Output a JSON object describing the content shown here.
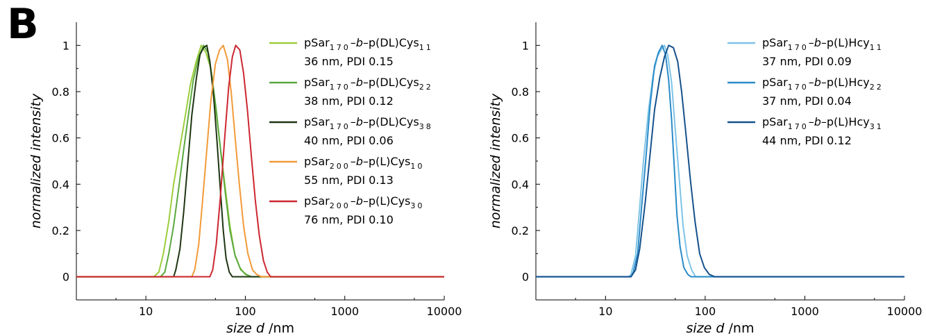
{
  "panel_letter": "B",
  "chart_data": [
    {
      "type": "line",
      "xscale": "log",
      "xlim": [
        2,
        10000
      ],
      "ylim": [
        -0.1,
        1.1
      ],
      "xticks": [
        10,
        100,
        1000,
        10000
      ],
      "xtick_labels": [
        "10",
        "100",
        "1000",
        "10000"
      ],
      "yticks": [
        0,
        0.2,
        0.4,
        0.6,
        0.8,
        1
      ],
      "ytick_labels": [
        "0",
        "0.2",
        "0.4",
        "0.6",
        "0.8",
        "1"
      ],
      "xlabel": {
        "italic": "size d",
        "rest": " /nm"
      },
      "ylabel": "normalized intensity",
      "grid": false,
      "legend_position": "top-right",
      "series": [
        {
          "name": "pSar170-b-p(DL)Cys11",
          "legend": {
            "base": "pSar",
            "sub1": "170",
            "mid1": "–",
            "italic": "b",
            "mid2": "–p(DL)Cys",
            "sub2": "11"
          },
          "stat": "36 nm, PDI 0.15",
          "color": "#9ccd3b",
          "points": [
            [
              2,
              0
            ],
            [
              12,
              0
            ],
            [
              13.5,
              0.02
            ],
            [
              15,
              0.1
            ],
            [
              17,
              0.24
            ],
            [
              19,
              0.4
            ],
            [
              22,
              0.56
            ],
            [
              25,
              0.7
            ],
            [
              28,
              0.83
            ],
            [
              32,
              0.93
            ],
            [
              36,
              1.0
            ],
            [
              40,
              0.97
            ],
            [
              45,
              0.9
            ],
            [
              50,
              0.74
            ],
            [
              56,
              0.56
            ],
            [
              63,
              0.38
            ],
            [
              70,
              0.22
            ],
            [
              78,
              0.1
            ],
            [
              88,
              0.04
            ],
            [
              100,
              0.01
            ],
            [
              115,
              0
            ],
            [
              10000,
              0
            ]
          ]
        },
        {
          "name": "pSar170-b-p(DL)Cys22",
          "legend": {
            "base": "pSar",
            "sub1": "170",
            "mid1": "–",
            "italic": "b",
            "mid2": "–p(DL)Cys",
            "sub2": "22"
          },
          "stat": "38 nm, PDI 0.12",
          "color": "#5aa83f",
          "points": [
            [
              2,
              0
            ],
            [
              14,
              0
            ],
            [
              15.5,
              0.02
            ],
            [
              17,
              0.1
            ],
            [
              19,
              0.22
            ],
            [
              21.5,
              0.39
            ],
            [
              24,
              0.55
            ],
            [
              27,
              0.71
            ],
            [
              30,
              0.85
            ],
            [
              34,
              0.95
            ],
            [
              38,
              1.0
            ],
            [
              42,
              0.97
            ],
            [
              46,
              0.87
            ],
            [
              51,
              0.72
            ],
            [
              57,
              0.53
            ],
            [
              63,
              0.36
            ],
            [
              70,
              0.2
            ],
            [
              79,
              0.09
            ],
            [
              90,
              0.03
            ],
            [
              102,
              0.01
            ],
            [
              115,
              0
            ],
            [
              10000,
              0
            ]
          ]
        },
        {
          "name": "pSar170-b-p(DL)Cys38",
          "legend": {
            "base": "pSar",
            "sub1": "170",
            "mid1": "–",
            "italic": "b",
            "mid2": "–p(DL)Cys",
            "sub2": "38"
          },
          "stat": "40 nm, PDI 0.06",
          "color": "#1e3412",
          "points": [
            [
              2,
              0
            ],
            [
              19,
              0
            ],
            [
              20,
              0.03
            ],
            [
              22,
              0.12
            ],
            [
              24,
              0.28
            ],
            [
              26.5,
              0.5
            ],
            [
              29,
              0.7
            ],
            [
              32,
              0.85
            ],
            [
              35,
              0.96
            ],
            [
              38,
              0.99
            ],
            [
              41,
              1.0
            ],
            [
              44,
              0.93
            ],
            [
              48,
              0.78
            ],
            [
              52,
              0.58
            ],
            [
              56,
              0.38
            ],
            [
              60,
              0.2
            ],
            [
              64,
              0.08
            ],
            [
              69,
              0.02
            ],
            [
              74,
              0
            ],
            [
              10000,
              0
            ]
          ]
        },
        {
          "name": "pSar200-b-p(L)Cys10",
          "legend": {
            "base": "pSar",
            "sub1": "200",
            "mid1": "–",
            "italic": "b",
            "mid2": "–p(L)Cys",
            "sub2": "10"
          },
          "stat": "55 nm, PDI 0.13",
          "color": "#f29a38",
          "points": [
            [
              2,
              0
            ],
            [
              29,
              0
            ],
            [
              31,
              0.03
            ],
            [
              34,
              0.14
            ],
            [
              37,
              0.32
            ],
            [
              41,
              0.55
            ],
            [
              45,
              0.76
            ],
            [
              50,
              0.92
            ],
            [
              55,
              0.98
            ],
            [
              60,
              1.0
            ],
            [
              66,
              0.94
            ],
            [
              72,
              0.8
            ],
            [
              79,
              0.6
            ],
            [
              87,
              0.4
            ],
            [
              96,
              0.22
            ],
            [
              106,
              0.1
            ],
            [
              118,
              0.03
            ],
            [
              130,
              0.01
            ],
            [
              145,
              0
            ],
            [
              10000,
              0
            ]
          ]
        },
        {
          "name": "pSar200-b-p(L)Cys30",
          "legend": {
            "base": "pSar",
            "sub1": "200",
            "mid1": "–",
            "italic": "b",
            "mid2": "–p(L)Cys",
            "sub2": "30"
          },
          "stat": "76 nm, PDI 0.10",
          "color": "#cc2630",
          "points": [
            [
              2,
              0
            ],
            [
              44,
              0
            ],
            [
              47,
              0.03
            ],
            [
              51,
              0.14
            ],
            [
              56,
              0.34
            ],
            [
              62,
              0.6
            ],
            [
              68,
              0.82
            ],
            [
              74,
              0.95
            ],
            [
              80,
              1.0
            ],
            [
              88,
              0.98
            ],
            [
              96,
              0.88
            ],
            [
              105,
              0.72
            ],
            [
              115,
              0.52
            ],
            [
              126,
              0.33
            ],
            [
              138,
              0.18
            ],
            [
              152,
              0.07
            ],
            [
              166,
              0.02
            ],
            [
              180,
              0
            ],
            [
              7500,
              0
            ],
            [
              10000,
              0
            ]
          ]
        }
      ]
    },
    {
      "type": "line",
      "xscale": "log",
      "xlim": [
        2,
        10000
      ],
      "ylim": [
        -0.1,
        1.1
      ],
      "xticks": [
        10,
        100,
        1000,
        10000
      ],
      "xtick_labels": [
        "10",
        "100",
        "1000",
        "10000"
      ],
      "yticks": [
        0,
        0.2,
        0.4,
        0.6,
        0.8,
        1
      ],
      "ytick_labels": [
        "0",
        "0.2",
        "0.4",
        "0.6",
        "0.8",
        "1"
      ],
      "xlabel": {
        "italic": "size d",
        "rest": " /nm"
      },
      "ylabel": "normalized intensity",
      "grid": false,
      "legend_position": "top-right",
      "series": [
        {
          "name": "pSar170-b-p(L)Hcy11",
          "legend": {
            "base": "pSar",
            "sub1": "170",
            "mid1": "–",
            "italic": "b",
            "mid2": "–p(L)Hcy",
            "sub2": "11"
          },
          "stat": "37 nm, PDI 0.09",
          "color": "#7ec3e6",
          "points": [
            [
              2,
              0
            ],
            [
              17,
              0
            ],
            [
              18,
              0.01
            ],
            [
              20,
              0.09
            ],
            [
              22,
              0.3
            ],
            [
              24,
              0.5
            ],
            [
              27,
              0.72
            ],
            [
              30,
              0.87
            ],
            [
              33,
              0.95
            ],
            [
              36,
              0.98
            ],
            [
              39,
              1.0
            ],
            [
              42,
              0.96
            ],
            [
              46,
              0.84
            ],
            [
              50,
              0.64
            ],
            [
              55,
              0.42
            ],
            [
              60,
              0.22
            ],
            [
              66,
              0.09
            ],
            [
              73,
              0.03
            ],
            [
              80,
              0
            ],
            [
              10000,
              0
            ]
          ]
        },
        {
          "name": "pSar170-b-p(L)Hcy22",
          "legend": {
            "base": "pSar",
            "sub1": "170",
            "mid1": "–",
            "italic": "b",
            "mid2": "–p(L)Hcy",
            "sub2": "22"
          },
          "stat": "37 nm, PDI 0.04",
          "color": "#2a8bc8",
          "points": [
            [
              2,
              0
            ],
            [
              18,
              0
            ],
            [
              19,
              0.02
            ],
            [
              21,
              0.1
            ],
            [
              23,
              0.3
            ],
            [
              25.5,
              0.52
            ],
            [
              28,
              0.74
            ],
            [
              31,
              0.91
            ],
            [
              34,
              0.97
            ],
            [
              37,
              1.0
            ],
            [
              40,
              0.96
            ],
            [
              43,
              0.85
            ],
            [
              46,
              0.68
            ],
            [
              49,
              0.47
            ],
            [
              52,
              0.27
            ],
            [
              56,
              0.13
            ],
            [
              61,
              0.04
            ],
            [
              67,
              0.01
            ],
            [
              72,
              0
            ],
            [
              10000,
              0
            ]
          ]
        },
        {
          "name": "pSar170-b-p(L)Hcy31",
          "legend": {
            "base": "pSar",
            "sub1": "170",
            "mid1": "–",
            "italic": "b",
            "mid2": "–p(L)Hcy",
            "sub2": "31"
          },
          "stat": "44 nm, PDI 0.12",
          "color": "#15508c",
          "points": [
            [
              2,
              0
            ],
            [
              18,
              0
            ],
            [
              20,
              0.03
            ],
            [
              22,
              0.12
            ],
            [
              25,
              0.32
            ],
            [
              28,
              0.53
            ],
            [
              31,
              0.72
            ],
            [
              35,
              0.86
            ],
            [
              39,
              0.95
            ],
            [
              43,
              1.0
            ],
            [
              48,
              0.99
            ],
            [
              53,
              0.93
            ],
            [
              58,
              0.8
            ],
            [
              64,
              0.62
            ],
            [
              71,
              0.42
            ],
            [
              79,
              0.24
            ],
            [
              88,
              0.1
            ],
            [
              98,
              0.04
            ],
            [
              110,
              0.01
            ],
            [
              125,
              0
            ],
            [
              8000,
              0
            ],
            [
              10000,
              0
            ]
          ]
        }
      ]
    }
  ]
}
